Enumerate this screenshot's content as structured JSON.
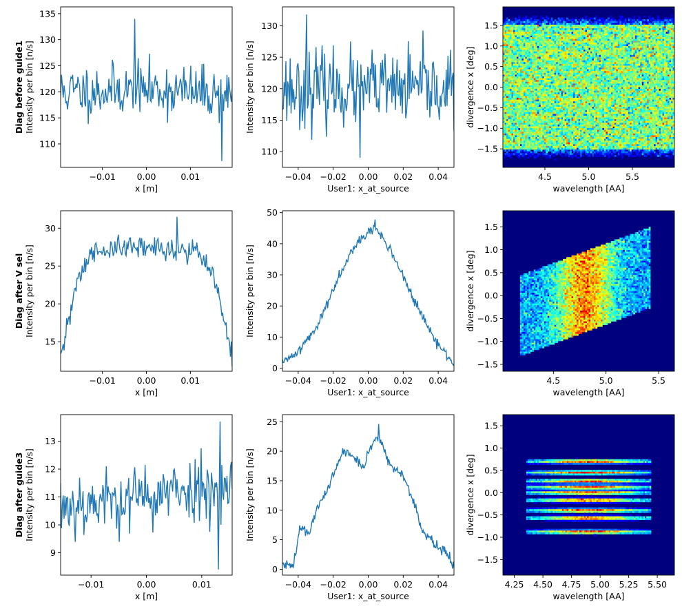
{
  "colors": {
    "line": "#1f77b4",
    "colormap": [
      "#00007f",
      "#0000ff",
      "#007fff",
      "#00ffff",
      "#7fff7f",
      "#ffff00",
      "#ff7f00",
      "#ff0000",
      "#7f0000"
    ]
  },
  "chart_data": [
    {
      "type": "line",
      "row": 0,
      "col": 0,
      "row_title": "Diag before guide1",
      "xlabel": "x [m]",
      "ylabel": "Intensity per bin [n/s]",
      "xlim": [
        -0.0195,
        0.0195
      ],
      "ylim": [
        105.5,
        136.3
      ],
      "xticks": [
        -0.01,
        0.0,
        0.01
      ],
      "xtick_labels": [
        "−0.01",
        "0.00",
        "0.01"
      ],
      "yticks": [
        110,
        115,
        120,
        125,
        130,
        135
      ],
      "ytick_labels": [
        "110",
        "115",
        "120",
        "125",
        "130",
        "135"
      ],
      "profile": {
        "n": 200,
        "base": [
          [
            0,
            120
          ],
          [
            0.5,
            120.5
          ],
          [
            1,
            119.5
          ]
        ],
        "noise": 4.2,
        "spikes": [
          [
            0.43,
            134
          ],
          [
            0.94,
            106.7
          ]
        ],
        "seed": 11
      }
    },
    {
      "type": "line",
      "row": 0,
      "col": 1,
      "row_title": "",
      "xlabel": "User1: x_at_source",
      "ylabel": "Intensity per bin [n/s]",
      "xlim": [
        -0.049,
        0.049
      ],
      "ylim": [
        107.5,
        133
      ],
      "xticks": [
        -0.04,
        -0.02,
        0.0,
        0.02,
        0.04
      ],
      "xtick_labels": [
        "−0.04",
        "−0.02",
        "0.00",
        "0.02",
        "0.04"
      ],
      "yticks": [
        110,
        115,
        120,
        125,
        130
      ],
      "ytick_labels": [
        "110",
        "115",
        "120",
        "125",
        "130"
      ],
      "profile": {
        "n": 200,
        "base": [
          [
            0,
            120
          ],
          [
            1,
            120
          ]
        ],
        "noise": 5.0,
        "spikes": [
          [
            0.14,
            131.8
          ],
          [
            0.45,
            109
          ]
        ],
        "seed": 23
      }
    },
    {
      "type": "heatmap",
      "row": 0,
      "col": 2,
      "row_title": "",
      "xlabel": "wavelength [AA]",
      "ylabel": "divergence x [deg]",
      "xlim": [
        4.02,
        5.98
      ],
      "ylim": [
        -1.95,
        1.95
      ],
      "xticks": [
        4.5,
        5.0,
        5.5
      ],
      "xtick_labels": [
        "4.5",
        "5.0",
        "5.5"
      ],
      "yticks": [
        -1.5,
        -1.0,
        -0.5,
        0.0,
        0.5,
        1.0,
        1.5
      ],
      "ytick_labels": [
        "−1.5",
        "−1.0",
        "−0.5",
        "0.0",
        "0.5",
        "1.0",
        "1.5"
      ],
      "pattern": "uniform",
      "grid": [
        90,
        100
      ],
      "seed": 5
    },
    {
      "type": "line",
      "row": 1,
      "col": 0,
      "row_title": "Diag after V sel",
      "xlabel": "x [m]",
      "ylabel": "Intensity per bin [n/s]",
      "xlim": [
        -0.0195,
        0.0195
      ],
      "ylim": [
        11.1,
        32.3
      ],
      "xticks": [
        -0.01,
        0.0,
        0.01
      ],
      "xtick_labels": [
        "−0.01",
        "0.00",
        "0.01"
      ],
      "yticks": [
        15,
        20,
        25,
        30
      ],
      "ytick_labels": [
        "15",
        "20",
        "25",
        "30"
      ],
      "profile": {
        "n": 200,
        "base": [
          [
            0,
            12.3
          ],
          [
            0.04,
            17
          ],
          [
            0.1,
            23.5
          ],
          [
            0.2,
            27
          ],
          [
            0.5,
            27.5
          ],
          [
            0.8,
            27
          ],
          [
            0.9,
            23
          ],
          [
            0.96,
            17
          ],
          [
            1,
            12.3
          ]
        ],
        "noise": 1.3,
        "spikes": [
          [
            0.68,
            31.5
          ]
        ],
        "seed": 31
      }
    },
    {
      "type": "line",
      "row": 1,
      "col": 1,
      "row_title": "",
      "xlabel": "User1: x_at_source",
      "ylabel": "Intensity per bin [n/s]",
      "xlim": [
        -0.049,
        0.049
      ],
      "ylim": [
        -1,
        50.6
      ],
      "xticks": [
        -0.04,
        -0.02,
        0.0,
        0.02,
        0.04
      ],
      "xtick_labels": [
        "−0.04",
        "−0.02",
        "0.00",
        "0.02",
        "0.04"
      ],
      "yticks": [
        0,
        10,
        20,
        30,
        40,
        50
      ],
      "ytick_labels": [
        "0",
        "10",
        "20",
        "30",
        "40",
        "50"
      ],
      "profile": {
        "n": 240,
        "base": [
          [
            0,
            1.5
          ],
          [
            0.1,
            6
          ],
          [
            0.2,
            13
          ],
          [
            0.3,
            26
          ],
          [
            0.4,
            38
          ],
          [
            0.5,
            44
          ],
          [
            0.55,
            44.5
          ],
          [
            0.62,
            39
          ],
          [
            0.7,
            30
          ],
          [
            0.8,
            18
          ],
          [
            0.9,
            8
          ],
          [
            1,
            1.5
          ]
        ],
        "noise": 1.3,
        "spikes": [
          [
            0.54,
            47.8
          ]
        ],
        "seed": 41
      }
    },
    {
      "type": "heatmap",
      "row": 1,
      "col": 2,
      "row_title": "",
      "xlabel": "wavelength [AA]",
      "ylabel": "divergence x [deg]",
      "xlim": [
        4.02,
        5.65
      ],
      "ylim": [
        -1.65,
        1.85
      ],
      "xticks": [
        4.5,
        5.0,
        5.5
      ],
      "xtick_labels": [
        "4.5",
        "5.0",
        "5.5"
      ],
      "yticks": [
        -1.5,
        -1.0,
        -0.5,
        0.0,
        0.5,
        1.0,
        1.5
      ],
      "ytick_labels": [
        "−1.5",
        "−1.0",
        "−0.5",
        "0.0",
        "0.5",
        "1.0",
        "1.5"
      ],
      "pattern": "parallelogram",
      "grid": [
        90,
        100
      ],
      "seed": 7
    },
    {
      "type": "line",
      "row": 2,
      "col": 0,
      "row_title": "Diag after guide3",
      "xlabel": "x [m]",
      "ylabel": "Intensity per bin [n/s]",
      "xlim": [
        -0.0155,
        0.0155
      ],
      "ylim": [
        8.2,
        13.95
      ],
      "xticks": [
        -0.01,
        0.0,
        0.01
      ],
      "xtick_labels": [
        "−0.01",
        "0.00",
        "0.01"
      ],
      "yticks": [
        9,
        10,
        11,
        12,
        13
      ],
      "ytick_labels": [
        "9",
        "10",
        "11",
        "12",
        "13"
      ],
      "profile": {
        "n": 200,
        "base": [
          [
            0,
            10.7
          ],
          [
            0.5,
            11.0
          ],
          [
            1,
            11.5
          ]
        ],
        "noise": 0.95,
        "spikes": [
          [
            0.93,
            13.7
          ],
          [
            0.92,
            8.4
          ]
        ],
        "seed": 53
      }
    },
    {
      "type": "line",
      "row": 2,
      "col": 1,
      "row_title": "",
      "xlabel": "User1: x_at_source",
      "ylabel": "Intensity per bin [n/s]",
      "xlim": [
        -0.049,
        0.049
      ],
      "ylim": [
        -1,
        26.2
      ],
      "xticks": [
        -0.04,
        -0.02,
        0.0,
        0.02,
        0.04
      ],
      "xtick_labels": [
        "−0.04",
        "−0.02",
        "0.00",
        "0.02",
        "0.04"
      ],
      "yticks": [
        0,
        5,
        10,
        15,
        20,
        25
      ],
      "ytick_labels": [
        "0",
        "5",
        "10",
        "15",
        "20",
        "25"
      ],
      "profile": {
        "n": 240,
        "base": [
          [
            0,
            0.6
          ],
          [
            0.06,
            0.8
          ],
          [
            0.08,
            3
          ],
          [
            0.1,
            7
          ],
          [
            0.15,
            6
          ],
          [
            0.2,
            10
          ],
          [
            0.3,
            16
          ],
          [
            0.35,
            20
          ],
          [
            0.42,
            19
          ],
          [
            0.48,
            17
          ],
          [
            0.5,
            20
          ],
          [
            0.56,
            23
          ],
          [
            0.62,
            18
          ],
          [
            0.7,
            16
          ],
          [
            0.76,
            12
          ],
          [
            0.82,
            6
          ],
          [
            0.9,
            4
          ],
          [
            0.95,
            3
          ],
          [
            1,
            0.5
          ]
        ],
        "noise": 0.8,
        "spikes": [
          [
            0.56,
            24.6
          ]
        ],
        "seed": 61
      }
    },
    {
      "type": "heatmap",
      "row": 2,
      "col": 2,
      "row_title": "",
      "xlabel": "wavelength [AA]",
      "ylabel": "divergence x [deg]",
      "xlim": [
        4.15,
        5.65
      ],
      "ylim": [
        -1.85,
        1.75
      ],
      "xticks": [
        4.25,
        4.5,
        4.75,
        5.0,
        5.25,
        5.5
      ],
      "xtick_labels": [
        "4.25",
        "4.50",
        "4.75",
        "5.00",
        "5.25",
        "5.50"
      ],
      "yticks": [
        -1.5,
        -1.0,
        -0.5,
        0.0,
        0.5,
        1.0,
        1.5
      ],
      "ytick_labels": [
        "−1.5",
        "−1.0",
        "−0.5",
        "0.0",
        "0.5",
        "1.0",
        "1.5"
      ],
      "pattern": "bands",
      "grid": [
        90,
        110
      ],
      "bands": [
        -0.88,
        -0.57,
        -0.4,
        -0.17,
        0.0,
        0.12,
        0.26,
        0.45,
        0.7
      ],
      "seed": 9
    }
  ]
}
